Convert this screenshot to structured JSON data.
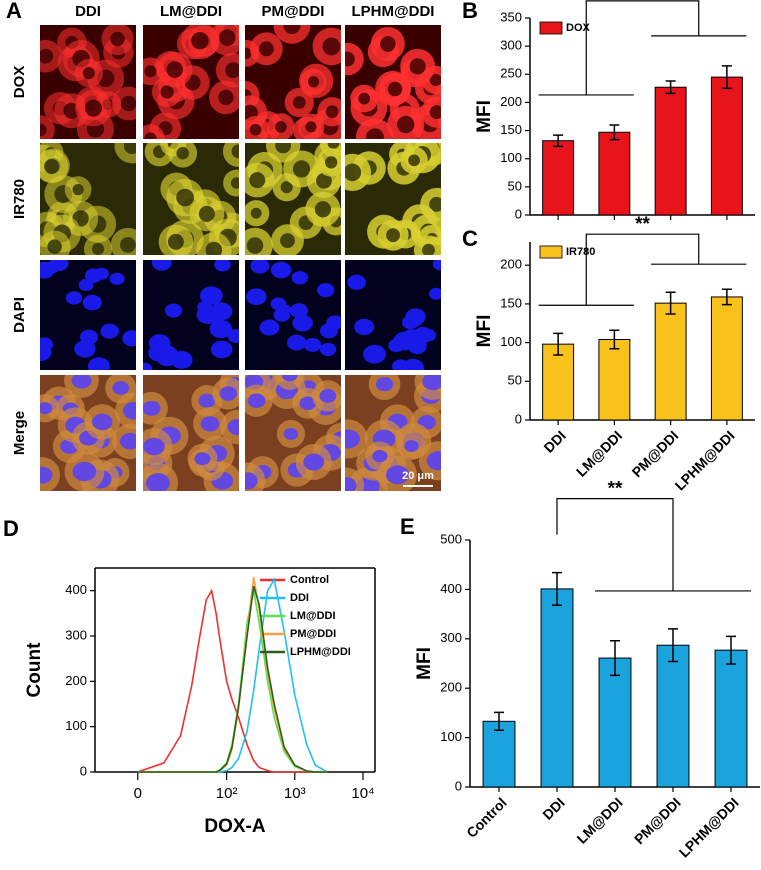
{
  "image_panel": {
    "panel_label": "A",
    "columns": [
      "DDI",
      "LM@DDI",
      "PM@DDI",
      "LPHM@DDI"
    ],
    "rows": [
      "DOX",
      "IR780",
      "DAPI",
      "Merge"
    ],
    "scale_bar": "20 μm"
  },
  "chart_data": [
    {
      "type": "bar",
      "panel_label": "B",
      "ylabel": "MFI",
      "series": [
        {
          "name": "DOX",
          "color": "#e8141c",
          "values": [
            132,
            147,
            227,
            245
          ],
          "errors": [
            10,
            13,
            11,
            20
          ]
        }
      ],
      "ylim": [
        0,
        350
      ],
      "yticks": [
        0,
        50,
        100,
        150,
        200,
        250,
        300,
        350
      ],
      "annotation": "**",
      "legend": "upper left"
    },
    {
      "type": "bar",
      "panel_label": "C",
      "ylabel": "MFI",
      "categories": [
        "DDI",
        "LM@DDI",
        "PM@DDI",
        "LPHM@DDI"
      ],
      "series": [
        {
          "name": "IR780",
          "color": "#f9c11c",
          "values": [
            98,
            104,
            151,
            159
          ],
          "errors": [
            14,
            12,
            14,
            10
          ]
        }
      ],
      "ylim": [
        0,
        230
      ],
      "yticks": [
        0,
        50,
        100,
        150,
        200
      ],
      "annotation": "**",
      "legend": "upper left"
    },
    {
      "type": "line",
      "panel_label": "D",
      "xlabel": "DOX-A",
      "ylabel": "Count",
      "xscale": "arcsinh",
      "x": [
        0,
        10,
        20,
        30,
        40,
        50,
        60,
        70,
        80,
        100,
        120,
        150,
        200,
        250,
        300,
        400,
        500,
        700,
        1000,
        1500,
        2000,
        3000
      ],
      "series": [
        {
          "name": "Control",
          "color": "#ee3030",
          "values": [
            0,
            20,
            80,
            190,
            300,
            380,
            400,
            350,
            290,
            200,
            160,
            120,
            60,
            25,
            10,
            3,
            0,
            0,
            0,
            0,
            0,
            0
          ]
        },
        {
          "name": "DDI",
          "color": "#22c0ee",
          "values": [
            0,
            0,
            0,
            0,
            0,
            0,
            0,
            0,
            0,
            3,
            10,
            30,
            90,
            180,
            270,
            400,
            425,
            310,
            170,
            60,
            15,
            0
          ]
        },
        {
          "name": "LM@DDI",
          "color": "#5ee050",
          "values": [
            0,
            0,
            0,
            0,
            0,
            0,
            0,
            0,
            5,
            20,
            60,
            150,
            330,
            400,
            330,
            200,
            120,
            45,
            12,
            2,
            0,
            0
          ]
        },
        {
          "name": "PM@DDI",
          "color": "#f4a040",
          "values": [
            0,
            0,
            0,
            0,
            0,
            0,
            0,
            0,
            3,
            15,
            50,
            140,
            310,
            430,
            360,
            220,
            140,
            50,
            15,
            2,
            0,
            0
          ]
        },
        {
          "name": "LPHM@DDI",
          "color": "#2e5e1e",
          "values": [
            0,
            0,
            0,
            0,
            0,
            0,
            0,
            0,
            4,
            18,
            55,
            145,
            300,
            410,
            370,
            230,
            150,
            55,
            15,
            2,
            0,
            0
          ]
        }
      ],
      "xlim": [
        -20,
        15000
      ],
      "xticks": [
        {
          "value": 0,
          "label": "0"
        },
        {
          "value": 100,
          "label": "10²"
        },
        {
          "value": 1000,
          "label": "10³"
        },
        {
          "value": 10000,
          "label": "10⁴"
        }
      ],
      "ylim": [
        0,
        450
      ],
      "yticks": [
        0,
        100,
        200,
        300,
        400
      ],
      "legend": "upper right"
    },
    {
      "type": "bar",
      "panel_label": "E",
      "ylabel": "MFI",
      "categories": [
        "Control",
        "DDI",
        "LM@DDI",
        "PM@DDI",
        "LPHM@DDI"
      ],
      "series": [
        {
          "name": "MFI",
          "color": "#1aa3dc",
          "values": [
            133,
            401,
            261,
            287,
            277
          ],
          "errors": [
            18,
            33,
            35,
            33,
            28
          ]
        }
      ],
      "ylim": [
        0,
        500
      ],
      "yticks": [
        0,
        100,
        200,
        300,
        400,
        500
      ],
      "annotation": "**"
    }
  ]
}
